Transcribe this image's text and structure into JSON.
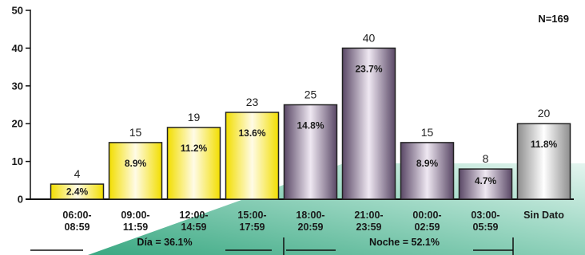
{
  "chart_data": {
    "type": "bar",
    "categories": [
      "06:00-\n08:59",
      "09:00-\n11:59",
      "12:00-\n14:59",
      "15:00-\n17:59",
      "18:00-\n20:59",
      "21:00-\n23:59",
      "00:00-\n02:59",
      "03:00-\n05:59",
      "Sin Dato"
    ],
    "values": [
      4,
      15,
      19,
      23,
      25,
      40,
      15,
      8,
      20
    ],
    "percent_labels": [
      "2.4%",
      "8.9%",
      "11.2%",
      "13.6%",
      "14.8%",
      "23.7%",
      "8.9%",
      "4.7%",
      "11.8%"
    ],
    "bar_groups": [
      "dia",
      "dia",
      "dia",
      "dia",
      "noche",
      "noche",
      "noche",
      "noche",
      "sin_dato"
    ],
    "ylim": [
      0,
      50
    ],
    "yticks": [
      0,
      10,
      20,
      30,
      40,
      50
    ],
    "annotation": "N=169",
    "groups": [
      {
        "key": "dia",
        "label": "Día = 36.1%"
      },
      {
        "key": "noche",
        "label": "Noche = 52.1%"
      }
    ],
    "colors": {
      "dia_bar": "#f7e400",
      "noche_bar": "#6b5878",
      "sin_dato_bar": "#9c9c9c",
      "decor_band": "#4ab898"
    },
    "grid": false,
    "legend": "none"
  }
}
